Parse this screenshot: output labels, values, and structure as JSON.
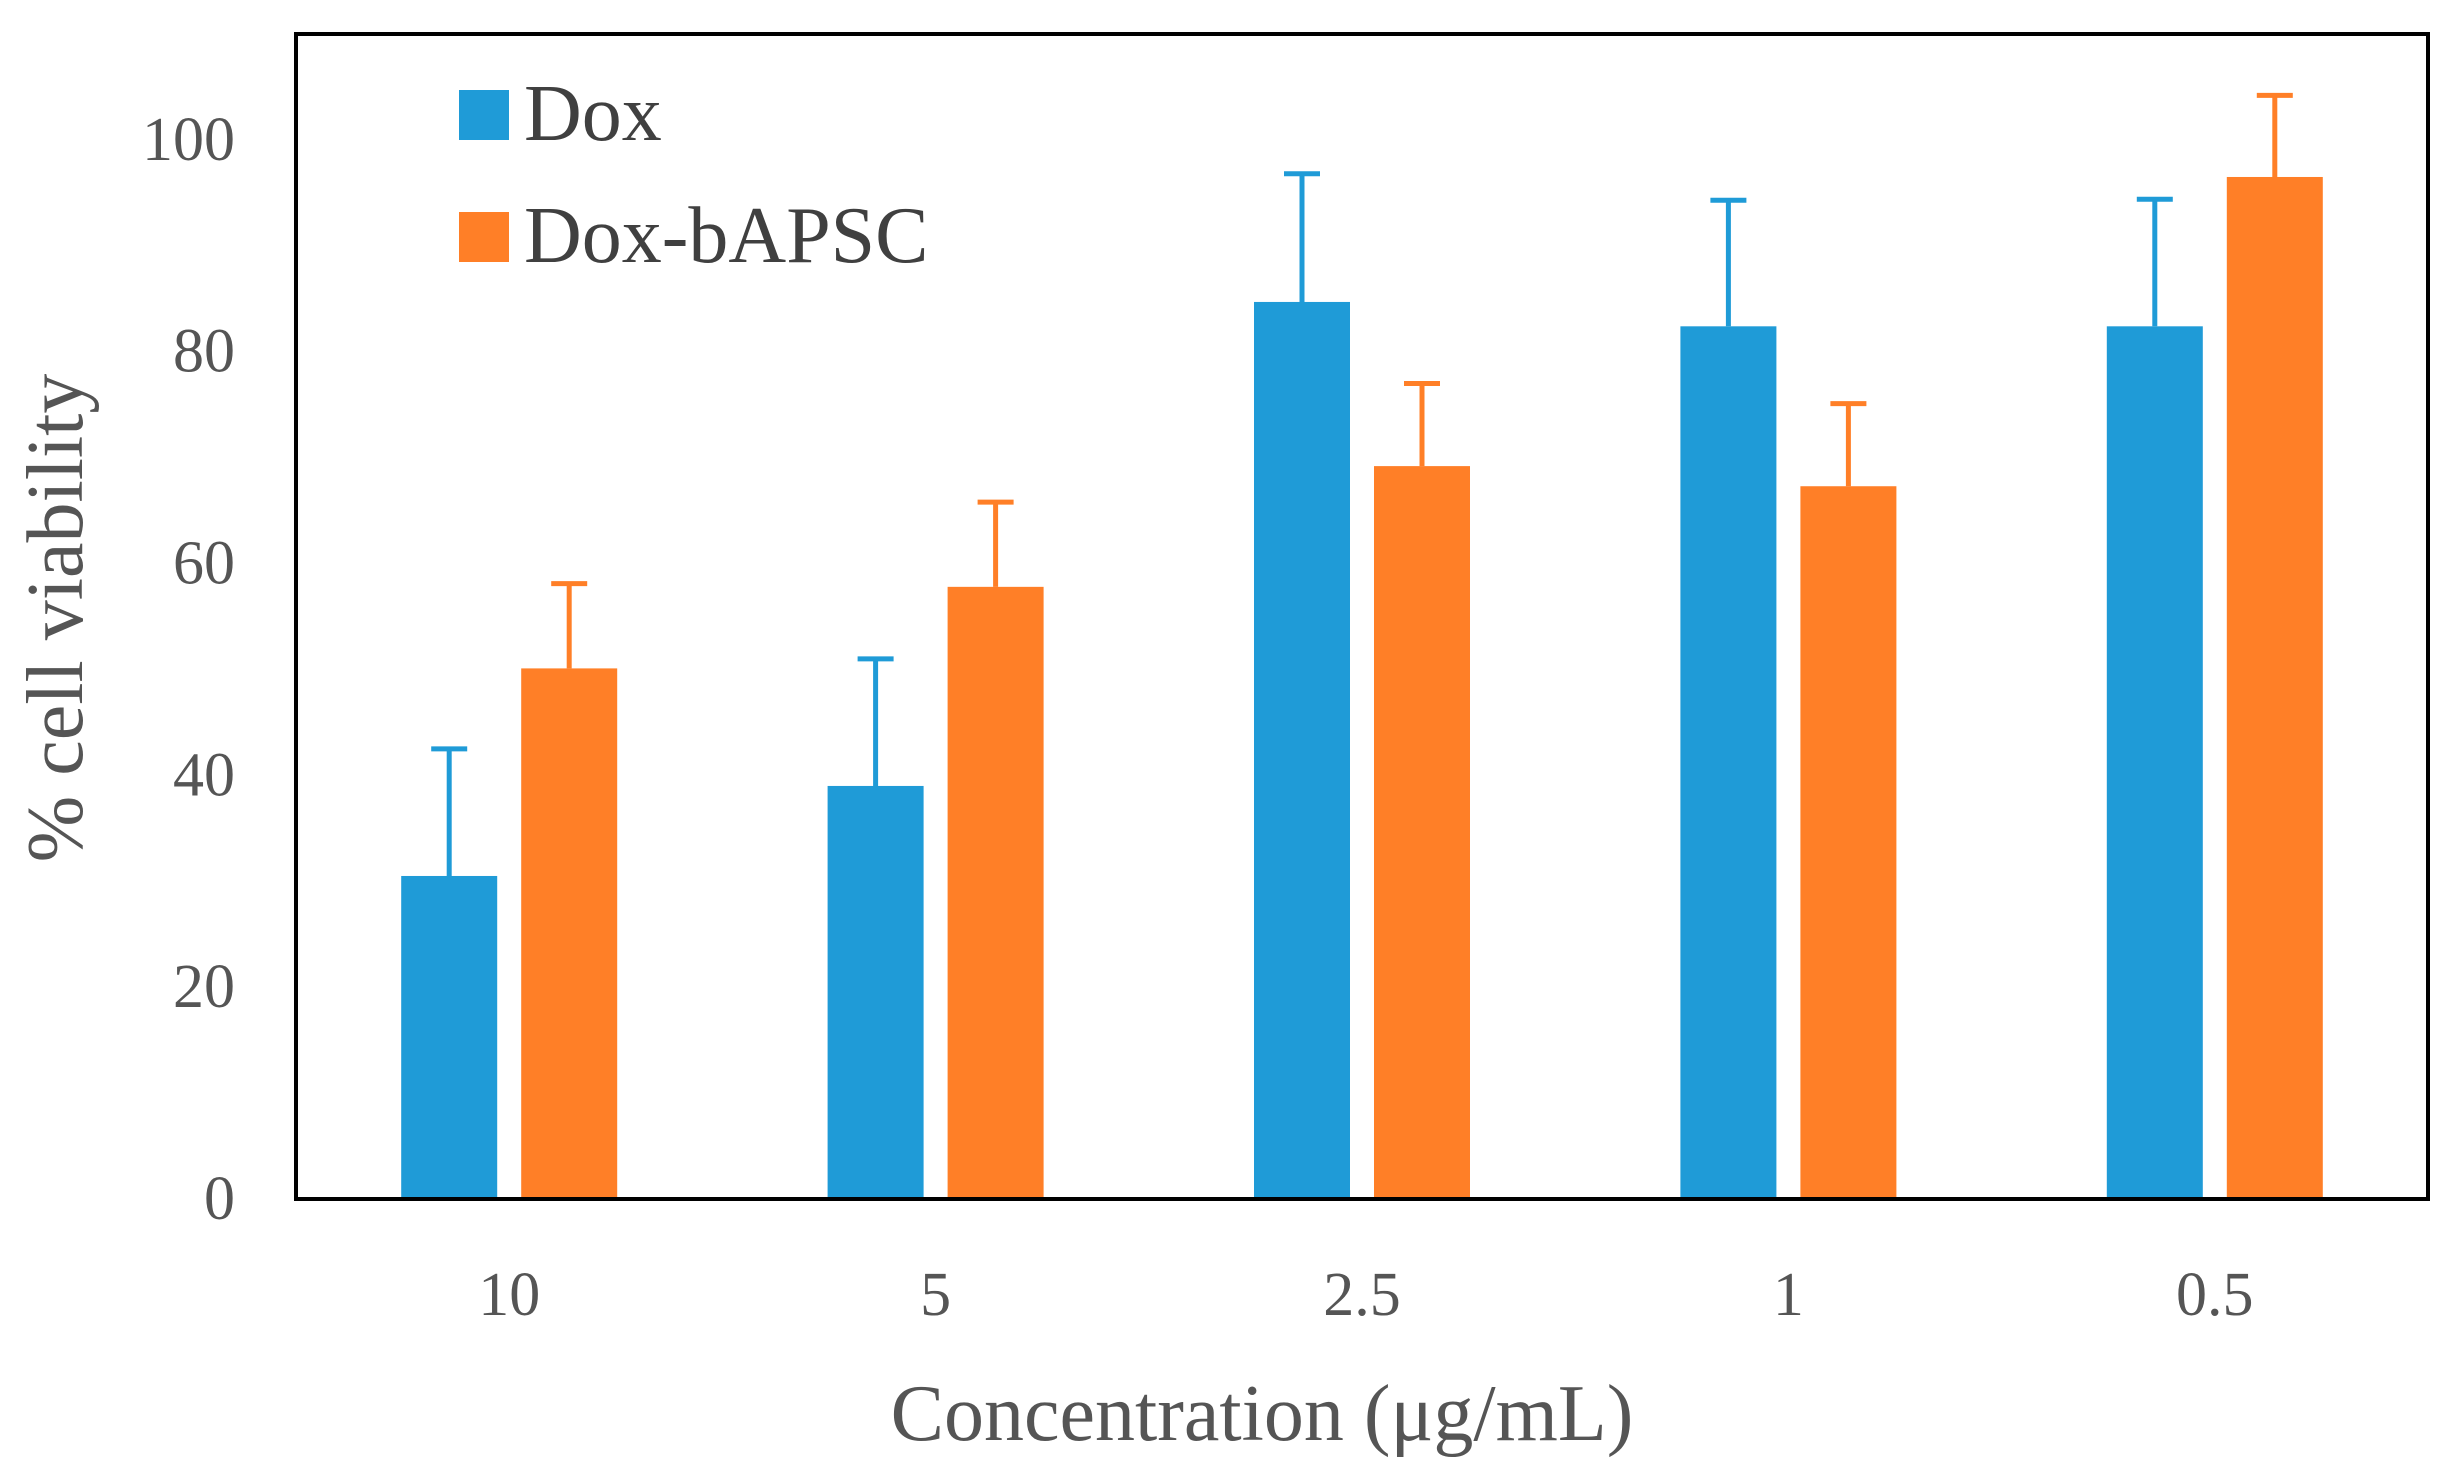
{
  "chart_data": {
    "type": "bar",
    "title": "",
    "xlabel": "Concentration (μg/mL)",
    "ylabel": "% cell viability",
    "categories": [
      "10",
      "5",
      "2.5",
      "1",
      "0.5"
    ],
    "ylim": [
      0,
      110
    ],
    "yticks": [
      0,
      20,
      40,
      60,
      80,
      100
    ],
    "grid": false,
    "legend_position": "top-left",
    "series": [
      {
        "name": "Dox",
        "color": "#1F9BD7",
        "values": [
          30.5,
          39,
          84.7,
          82.4,
          82.4
        ],
        "errors": [
          12,
          12,
          12.1,
          11.9,
          12
        ]
      },
      {
        "name": "Dox-bAPSC",
        "color": "#FF7F27",
        "values": [
          50.1,
          57.8,
          69.2,
          67.3,
          96.5
        ],
        "errors": [
          8,
          8,
          7.8,
          7.8,
          7.7
        ]
      }
    ]
  }
}
